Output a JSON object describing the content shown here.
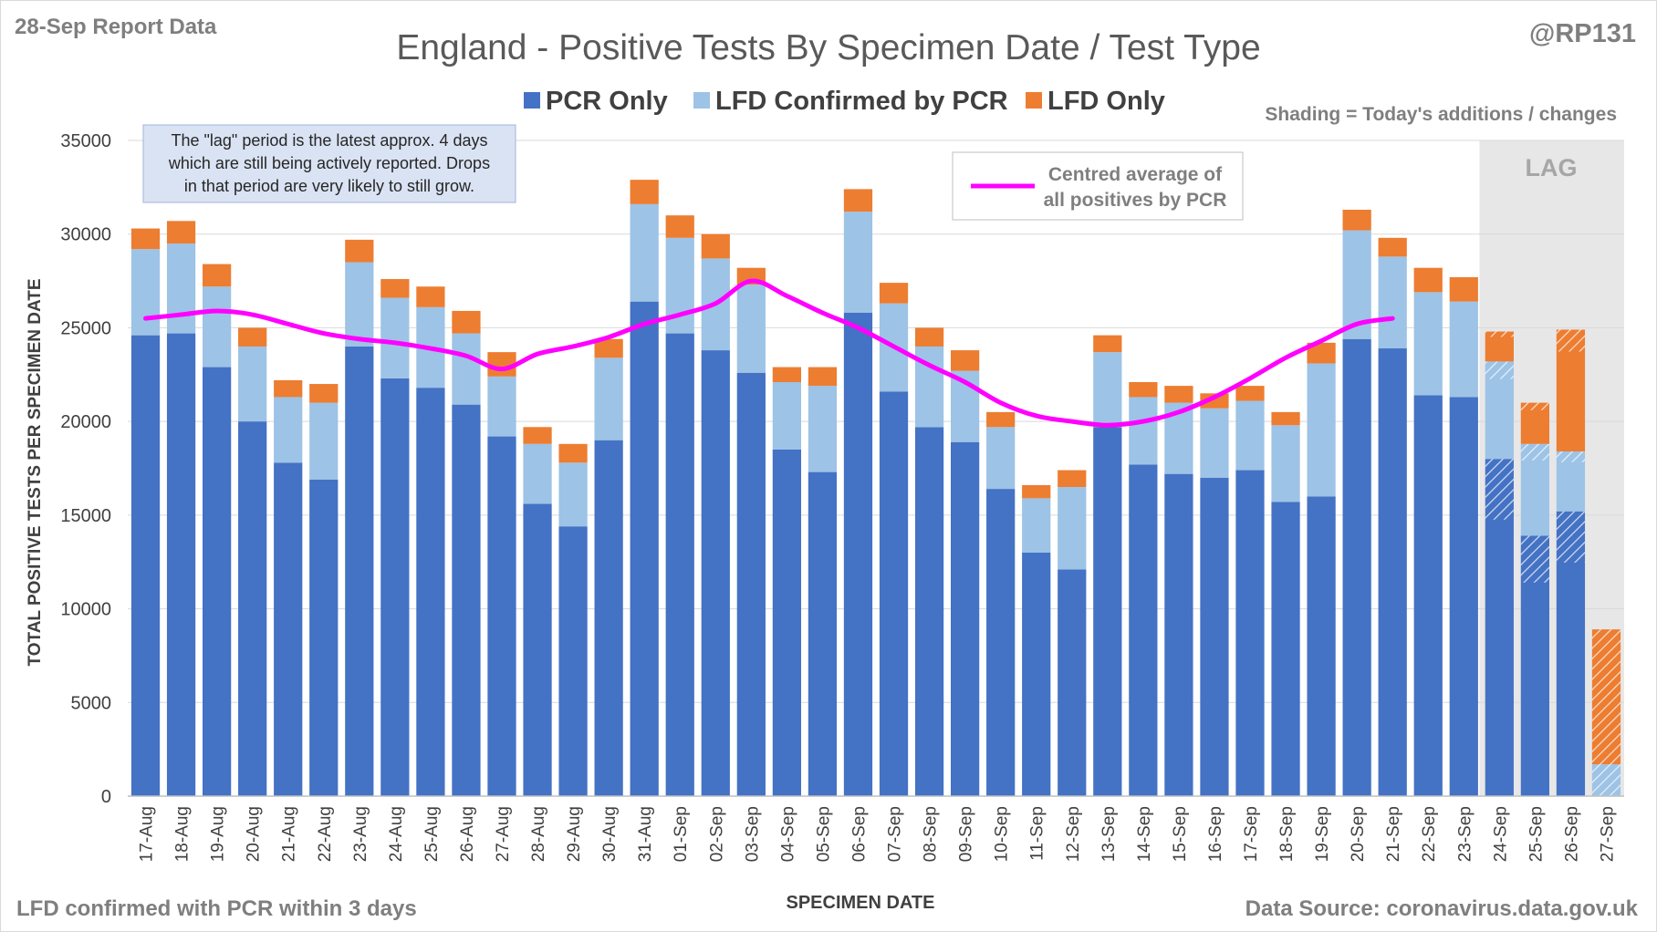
{
  "header": {
    "report_label": "28-Sep Report Data",
    "handle": "@RP131",
    "footnote_left": "LFD confirmed with PCR within 3 days",
    "footnote_right": "Data Source: coronavirus.data.gov.uk",
    "shading_note": "Shading = Today's additions / changes",
    "lag_label": "LAG"
  },
  "annotation": {
    "lines": [
      "The \"lag\" period is the latest approx. 4 days",
      "which are still being actively reported.  Drops",
      "in that period are very likely to still grow."
    ]
  },
  "line_legend": {
    "lines": [
      "Centred average of",
      "all positives by PCR"
    ]
  },
  "colors": {
    "pcr_only": "#4472c4",
    "lfd_confirmed": "#9dc3e6",
    "lfd_only": "#ed7d31",
    "average_line": "#ff00ff",
    "lag_shading": "#e7e7e7",
    "grid": "#d9d9d9"
  },
  "chart_data": {
    "type": "bar",
    "stacked": true,
    "title": "England - Positive Tests By Specimen Date / Test Type",
    "xlabel": "SPECIMEN DATE",
    "ylabel": "TOTAL POSITIVE TESTS PER SPECIMEN DATE",
    "ylim": [
      0,
      35000
    ],
    "yticks": [
      0,
      5000,
      10000,
      15000,
      20000,
      25000,
      30000,
      35000
    ],
    "grid": true,
    "legend_position": "top-center",
    "categories": [
      "17-Aug",
      "18-Aug",
      "19-Aug",
      "20-Aug",
      "21-Aug",
      "22-Aug",
      "23-Aug",
      "24-Aug",
      "25-Aug",
      "26-Aug",
      "27-Aug",
      "28-Aug",
      "29-Aug",
      "30-Aug",
      "31-Aug",
      "01-Sep",
      "02-Sep",
      "03-Sep",
      "04-Sep",
      "05-Sep",
      "06-Sep",
      "07-Sep",
      "08-Sep",
      "09-Sep",
      "10-Sep",
      "11-Sep",
      "12-Sep",
      "13-Sep",
      "14-Sep",
      "15-Sep",
      "16-Sep",
      "17-Sep",
      "18-Sep",
      "19-Sep",
      "20-Sep",
      "21-Sep",
      "22-Sep",
      "23-Sep",
      "24-Sep",
      "25-Sep",
      "26-Sep",
      "27-Sep"
    ],
    "series": [
      {
        "name": "PCR Only",
        "values": [
          24600,
          24700,
          22900,
          20000,
          17800,
          16900,
          24000,
          22300,
          21800,
          20900,
          19200,
          15600,
          14400,
          19000,
          26400,
          24700,
          23800,
          22600,
          18500,
          17300,
          25800,
          21600,
          19700,
          18900,
          16400,
          13000,
          12100,
          19700,
          17700,
          17200,
          17000,
          17400,
          15700,
          16000,
          24400,
          23900,
          21400,
          21300,
          18000,
          13900,
          15200,
          0
        ]
      },
      {
        "name": "LFD Confirmed by PCR",
        "values": [
          4600,
          4800,
          4300,
          4000,
          3500,
          4100,
          4500,
          4300,
          4300,
          3800,
          3200,
          3200,
          3400,
          4400,
          5200,
          5100,
          4900,
          4700,
          3600,
          4600,
          5400,
          4700,
          4300,
          3800,
          3300,
          2900,
          4400,
          4000,
          3600,
          3800,
          3700,
          3700,
          4100,
          7100,
          5800,
          4900,
          5500,
          5100,
          5200,
          4900,
          3200,
          1700
        ]
      },
      {
        "name": "LFD Only",
        "values": [
          1100,
          1200,
          1200,
          1000,
          900,
          1000,
          1200,
          1000,
          1100,
          1200,
          1300,
          900,
          1000,
          1000,
          1300,
          1200,
          1300,
          900,
          800,
          1000,
          1200,
          1100,
          1000,
          1100,
          800,
          700,
          900,
          900,
          800,
          900,
          800,
          800,
          700,
          1100,
          1100,
          1000,
          1300,
          1300,
          1600,
          2200,
          6500,
          7200
        ]
      }
    ],
    "average_line": {
      "name": "Centred average of all positives by PCR",
      "categories": [
        "17-Aug",
        "18-Aug",
        "19-Aug",
        "20-Aug",
        "21-Aug",
        "22-Aug",
        "23-Aug",
        "24-Aug",
        "25-Aug",
        "26-Aug",
        "27-Aug",
        "28-Aug",
        "29-Aug",
        "30-Aug",
        "31-Aug",
        "01-Sep",
        "02-Sep",
        "03-Sep",
        "04-Sep",
        "05-Sep",
        "06-Sep",
        "07-Sep",
        "08-Sep",
        "09-Sep",
        "10-Sep",
        "11-Sep",
        "12-Sep",
        "13-Sep",
        "14-Sep",
        "15-Sep",
        "16-Sep",
        "17-Sep",
        "18-Sep",
        "19-Sep",
        "20-Sep",
        "21-Sep"
      ],
      "values": [
        25500,
        25700,
        25900,
        25700,
        25200,
        24700,
        24400,
        24200,
        23900,
        23500,
        22800,
        23600,
        24000,
        24500,
        25200,
        25700,
        26300,
        27500,
        26700,
        25800,
        25000,
        24000,
        23000,
        22100,
        21000,
        20300,
        20000,
        19800,
        20000,
        20500,
        21300,
        22300,
        23400,
        24300,
        25200,
        25500
      ]
    },
    "lag_period": [
      "24-Sep",
      "25-Sep",
      "26-Sep",
      "27-Sep"
    ],
    "legend": [
      "PCR Only",
      "LFD Confirmed by PCR",
      "LFD Only"
    ]
  }
}
